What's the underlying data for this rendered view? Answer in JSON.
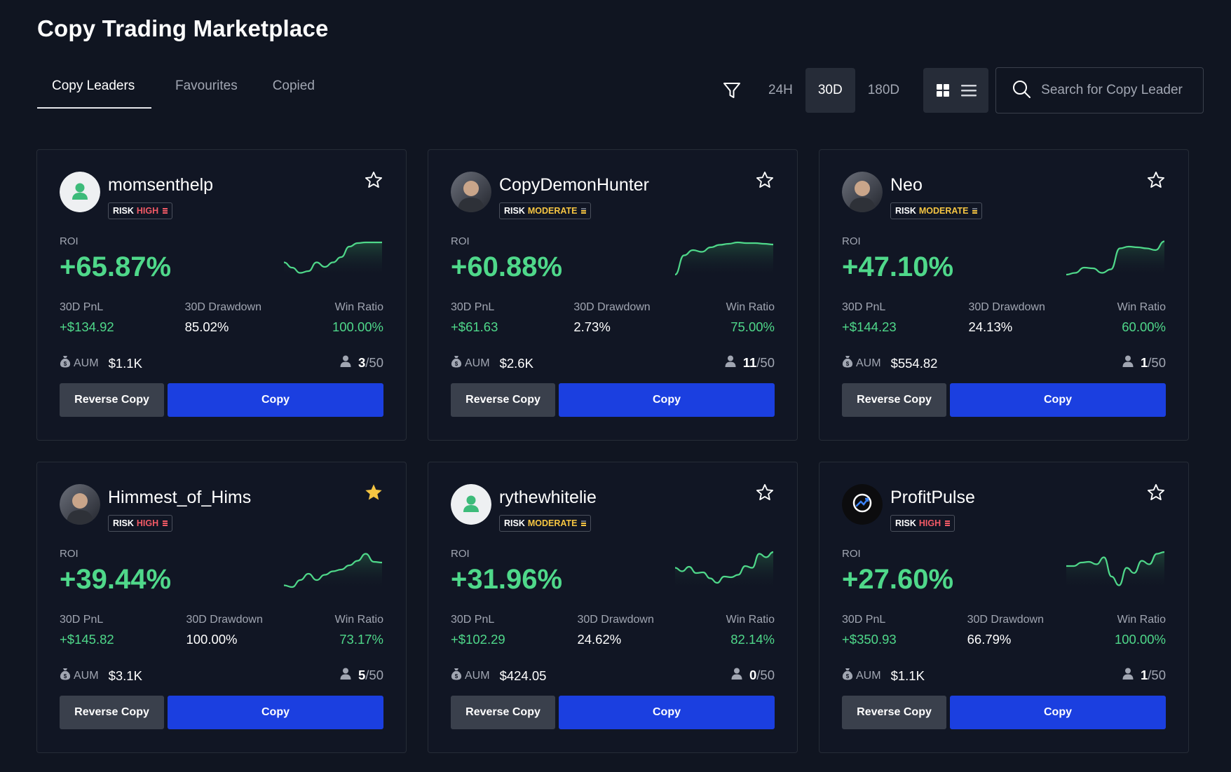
{
  "page_title": "Copy Trading Marketplace",
  "tabs": [
    {
      "label": "Copy Leaders",
      "active": true
    },
    {
      "label": "Favourites",
      "active": false
    },
    {
      "label": "Copied",
      "active": false
    }
  ],
  "toolbar": {
    "filter_icon": "filter-icon",
    "periods": [
      {
        "label": "24H",
        "active": false
      },
      {
        "label": "30D",
        "active": true
      },
      {
        "label": "180D",
        "active": false
      }
    ],
    "view_modes": [
      "grid-view-icon",
      "list-view-icon"
    ],
    "search_placeholder": "Search for Copy Leader"
  },
  "labels": {
    "risk": "RISK",
    "roi": "ROI",
    "pnl": "30D PnL",
    "drawdown": "30D Drawdown",
    "win_ratio": "Win Ratio",
    "aum": "AUM",
    "reverse_copy": "Reverse Copy",
    "copy": "Copy"
  },
  "colors": {
    "background": "#101521",
    "positive": "#4fd88a",
    "risk_high": "#f25a66",
    "risk_moderate": "#f5c542",
    "copy_button": "#1b3fe0",
    "reverse_button": "#3a404c",
    "favourite_star": "#f5c542"
  },
  "cards": [
    {
      "name": "momsenthelp",
      "avatar": "default-user-avatar",
      "risk": "HIGH",
      "favourite": false,
      "roi": "+65.87%",
      "pnl": "+$134.92",
      "drawdown": "85.02%",
      "win_ratio": "100.00%",
      "aum": "$1.1K",
      "copiers": "3",
      "max_copiers": "/50",
      "sparkline": [
        0.35,
        0.2,
        0.05,
        0.1,
        0.35,
        0.22,
        0.35,
        0.5,
        0.8,
        0.9,
        0.92,
        0.92,
        0.92
      ]
    },
    {
      "name": "CopyDemonHunter",
      "avatar": "photo-avatar",
      "risk": "MODERATE",
      "favourite": false,
      "roi": "+60.88%",
      "pnl": "+$61.63",
      "drawdown": "2.73%",
      "win_ratio": "75.00%",
      "aum": "$2.6K",
      "copiers": "11",
      "max_copiers": "/50",
      "sparkline": [
        0.0,
        0.55,
        0.7,
        0.65,
        0.78,
        0.85,
        0.88,
        0.92,
        0.9,
        0.9,
        0.88,
        0.86
      ]
    },
    {
      "name": "Neo",
      "avatar": "photo-avatar",
      "risk": "MODERATE",
      "favourite": false,
      "roi": "+47.10%",
      "pnl": "+$144.23",
      "drawdown": "24.13%",
      "win_ratio": "60.00%",
      "aum": "$554.82",
      "copiers": "1",
      "max_copiers": "/50",
      "sparkline": [
        0.0,
        0.05,
        0.2,
        0.18,
        0.05,
        0.15,
        0.75,
        0.8,
        0.78,
        0.75,
        0.7,
        0.95
      ]
    },
    {
      "name": "Himmest_of_Hims",
      "avatar": "photo-avatar",
      "risk": "HIGH",
      "favourite": true,
      "roi": "+39.44%",
      "pnl": "+$145.82",
      "drawdown": "100.00%",
      "win_ratio": "73.17%",
      "aum": "$3.1K",
      "copiers": "5",
      "max_copiers": "/50",
      "sparkline": [
        0.05,
        0.0,
        0.2,
        0.38,
        0.2,
        0.35,
        0.45,
        0.5,
        0.62,
        0.75,
        0.95,
        0.72,
        0.7
      ]
    },
    {
      "name": "rythewhitelie",
      "avatar": "default-user-avatar",
      "risk": "MODERATE",
      "favourite": false,
      "roi": "+31.96%",
      "pnl": "+$102.29",
      "drawdown": "24.62%",
      "win_ratio": "82.14%",
      "aum": "$424.05",
      "copiers": "0",
      "max_copiers": "/50",
      "sparkline": [
        0.55,
        0.45,
        0.58,
        0.4,
        0.42,
        0.25,
        0.12,
        0.3,
        0.28,
        0.35,
        0.6,
        0.55,
        0.95,
        0.85,
        1.0
      ]
    },
    {
      "name": "ProfitPulse",
      "avatar": "logo-avatar",
      "risk": "HIGH",
      "favourite": false,
      "roi": "+27.60%",
      "pnl": "+$350.93",
      "drawdown": "66.79%",
      "win_ratio": "100.00%",
      "aum": "$1.1K",
      "copiers": "1",
      "max_copiers": "/50",
      "sparkline": [
        0.6,
        0.6,
        0.7,
        0.72,
        0.65,
        0.85,
        0.3,
        0.05,
        0.55,
        0.4,
        0.75,
        0.65,
        0.95,
        1.0
      ]
    }
  ]
}
